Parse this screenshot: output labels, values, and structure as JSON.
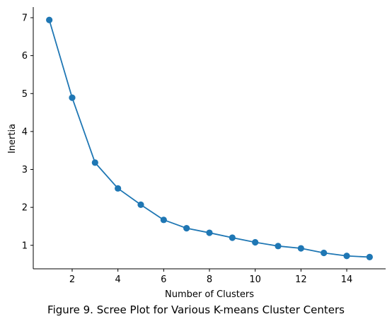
{
  "chart_data": {
    "type": "line",
    "xlabel": "Number of Clusters",
    "ylabel": "Inertia",
    "xlim": [
      0.3,
      15.7
    ],
    "ylim": [
      0.38,
      7.28
    ],
    "xticks": [
      2,
      4,
      6,
      8,
      10,
      12,
      14
    ],
    "yticks": [
      1,
      2,
      3,
      4,
      5,
      6,
      7
    ],
    "grid": false,
    "series": [
      {
        "color": "#1f77b4",
        "marker": "circle",
        "x": [
          1,
          2,
          3,
          4,
          5,
          6,
          7,
          8,
          9,
          10,
          11,
          12,
          13,
          14,
          15
        ],
        "y": [
          6.94,
          4.89,
          3.18,
          2.5,
          2.07,
          1.67,
          1.45,
          1.33,
          1.2,
          1.08,
          0.98,
          0.92,
          0.8,
          0.72,
          0.69
        ]
      }
    ]
  },
  "caption": "Figure 9. Scree Plot for Various K-means Cluster Centers"
}
